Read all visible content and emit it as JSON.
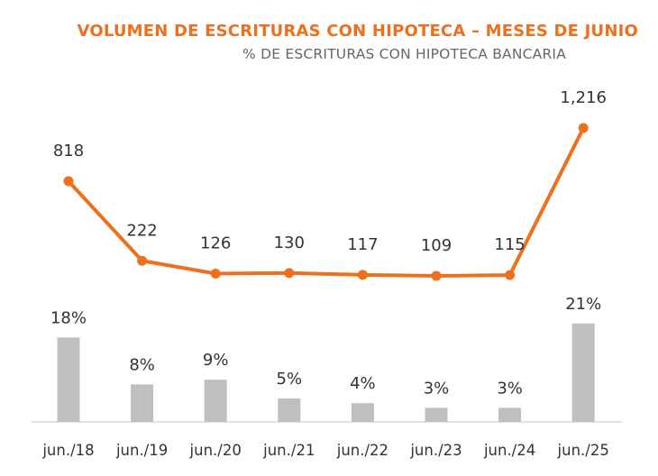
{
  "chart_data": {
    "type": "bar+line",
    "title": "VOLUMEN DE ESCRITURAS CON HIPOTECA – MESES DE JUNIO",
    "subtitle": "% DE ESCRITURAS CON HIPOTECA BANCARIA",
    "categories": [
      "jun./18",
      "jun./19",
      "jun./20",
      "jun./21",
      "jun./22",
      "jun./23",
      "jun./24",
      "jun./25"
    ],
    "line": {
      "values": [
        818,
        222,
        126,
        130,
        117,
        109,
        115,
        1216
      ],
      "labels": [
        "818",
        "222",
        "126",
        "130",
        "117",
        "109",
        "115",
        "1,216"
      ],
      "color": "#ee6f1e"
    },
    "bars": {
      "values": [
        18,
        8,
        9,
        5,
        4,
        3,
        3,
        21
      ],
      "labels": [
        "18%",
        "8%",
        "9%",
        "5%",
        "4%",
        "3%",
        "3%",
        "21%"
      ],
      "color": "#bfbfbf",
      "unit": "%"
    },
    "title_color": "#ee6f1e",
    "axis_color": "#d9d9d9",
    "grid": false,
    "legend": "none"
  }
}
